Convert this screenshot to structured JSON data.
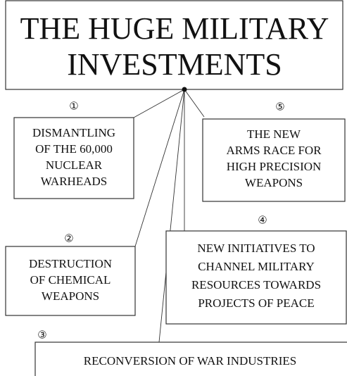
{
  "title": {
    "lines": [
      "THE HUGE MILITARY",
      "INVESTMENTS"
    ]
  },
  "nodes": [
    {
      "number": "①",
      "lines": [
        "DISMANTLING",
        "OF THE 60,000",
        "NUCLEAR",
        "WARHEADS"
      ]
    },
    {
      "number": "⑤",
      "lines": [
        "THE NEW",
        "ARMS RACE FOR",
        "HIGH PRECISION",
        "WEAPONS"
      ]
    },
    {
      "number": "②",
      "lines": [
        "DESTRUCTION",
        "OF CHEMICAL",
        "WEAPONS"
      ]
    },
    {
      "number": "④",
      "lines": [
        "NEW INITIATIVES TO",
        "CHANNEL MILITARY",
        "RESOURCES TOWARDS",
        "PROJECTS OF PEACE"
      ]
    },
    {
      "number": "③",
      "lines": [
        "RECONVERSION OF WAR INDUSTRIES"
      ]
    }
  ]
}
